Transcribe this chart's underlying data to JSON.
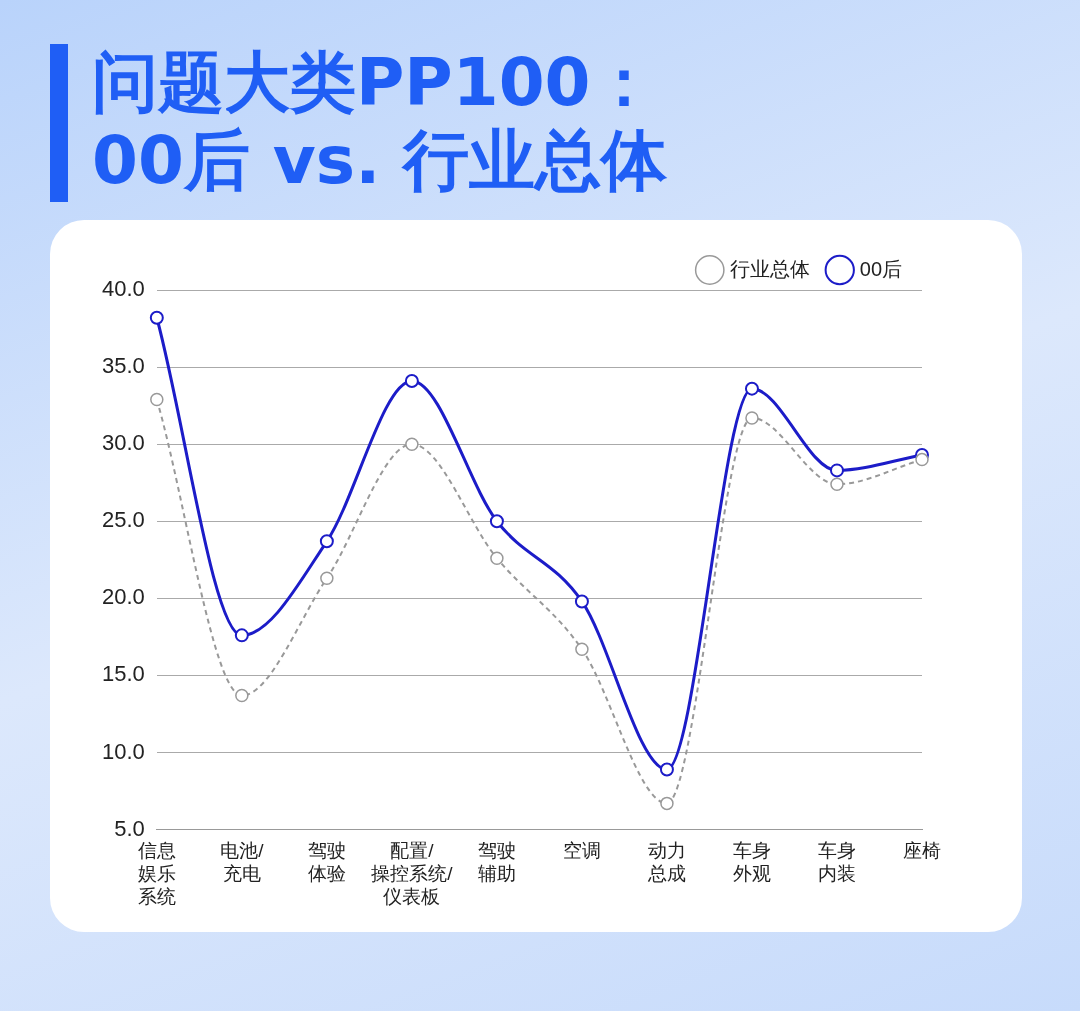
{
  "chart_data": {
    "type": "line",
    "title": "问题大类PP100：\n00后 vs. 行业总体",
    "categories": [
      "信息娱乐系统",
      "电池/充电",
      "驾驶体验",
      "配置/操控系统/仪表板",
      "驾驶辅助",
      "空调",
      "动力总成",
      "车身外观",
      "车身内装",
      "座椅"
    ],
    "series": [
      {
        "name": "00后",
        "color": "#1c1cc8",
        "line_style": "solid",
        "values": [
          38.2,
          17.6,
          23.7,
          34.1,
          25.0,
          19.8,
          8.9,
          33.6,
          28.3,
          29.3
        ]
      },
      {
        "name": "行业总体",
        "color": "#999999",
        "line_style": "dashed",
        "values": [
          32.9,
          13.7,
          21.3,
          30.0,
          22.6,
          16.7,
          6.7,
          31.7,
          27.4,
          29.0
        ]
      }
    ],
    "ylim": [
      5,
      40
    ],
    "yticks": [
      {
        "value": 5,
        "label": "5.0"
      },
      {
        "value": 10,
        "label": "10.0"
      },
      {
        "value": 15,
        "label": "15.0"
      },
      {
        "value": 20,
        "label": "20.0"
      },
      {
        "value": 25,
        "label": "25.0"
      },
      {
        "value": 30,
        "label": "30.0"
      },
      {
        "value": 35,
        "label": "35.0"
      },
      {
        "value": 40,
        "label": "40.0"
      }
    ],
    "grid": "y",
    "legend": "top right",
    "marker": "circle"
  }
}
